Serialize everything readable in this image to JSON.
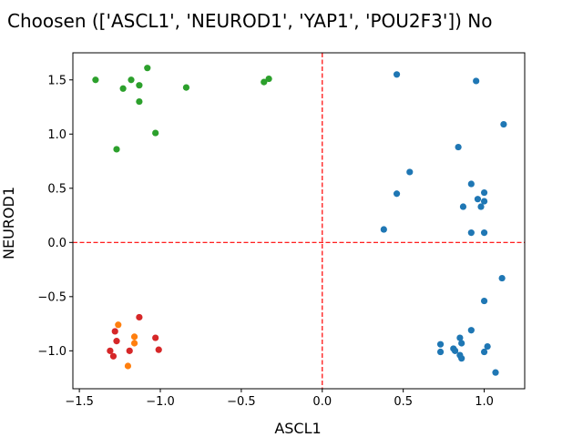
{
  "chart_data": {
    "type": "scatter",
    "title": "Choosen (['ASCL1', 'NEUROD1', 'YAP1', 'POU2F3']) No",
    "xlabel": "ASCL1",
    "ylabel": "NEUROD1",
    "xlim": [
      -1.54,
      1.25
    ],
    "ylim": [
      -1.35,
      1.75
    ],
    "xticks": [
      -1.5,
      -1.0,
      -0.5,
      0.0,
      0.5,
      1.0
    ],
    "xtick_labels": [
      "−1.5",
      "−1.0",
      "−0.5",
      "0.0",
      "0.5",
      "1.0"
    ],
    "yticks": [
      -1.0,
      -0.5,
      0.0,
      0.5,
      1.0,
      1.5
    ],
    "ytick_labels": [
      "−1.0",
      "−0.5",
      "0.0",
      "0.5",
      "1.0",
      "1.5"
    ],
    "grid": false,
    "reference_lines": {
      "x": 0.0,
      "y": 0.0,
      "color": "#ff0000",
      "style": "dashed"
    },
    "series": [
      {
        "color": "#1f77b4",
        "points": [
          [
            0.46,
            1.55
          ],
          [
            0.95,
            1.49
          ],
          [
            1.12,
            1.09
          ],
          [
            0.84,
            0.88
          ],
          [
            0.54,
            0.65
          ],
          [
            0.92,
            0.54
          ],
          [
            0.46,
            0.45
          ],
          [
            1.0,
            0.46
          ],
          [
            0.96,
            0.4
          ],
          [
            1.0,
            0.38
          ],
          [
            0.87,
            0.33
          ],
          [
            0.98,
            0.33
          ],
          [
            0.38,
            0.12
          ],
          [
            0.92,
            0.09
          ],
          [
            1.0,
            0.09
          ],
          [
            1.11,
            -0.33
          ],
          [
            1.0,
            -0.54
          ],
          [
            0.92,
            -0.81
          ],
          [
            0.85,
            -0.88
          ],
          [
            0.73,
            -0.94
          ],
          [
            0.86,
            -0.93
          ],
          [
            0.81,
            -0.98
          ],
          [
            1.02,
            -0.96
          ],
          [
            0.73,
            -1.01
          ],
          [
            0.82,
            -1.0
          ],
          [
            1.0,
            -1.01
          ],
          [
            0.85,
            -1.04
          ],
          [
            0.86,
            -1.07
          ],
          [
            1.07,
            -1.2
          ]
        ]
      },
      {
        "color": "#2ca02c",
        "points": [
          [
            -1.4,
            1.5
          ],
          [
            -1.08,
            1.61
          ],
          [
            -1.18,
            1.5
          ],
          [
            -1.23,
            1.42
          ],
          [
            -1.13,
            1.45
          ],
          [
            -0.84,
            1.43
          ],
          [
            -0.36,
            1.48
          ],
          [
            -0.33,
            1.51
          ],
          [
            -1.13,
            1.3
          ],
          [
            -1.03,
            1.01
          ],
          [
            -1.27,
            0.86
          ]
        ]
      },
      {
        "color": "#ff7f0e",
        "points": [
          [
            -1.26,
            -0.76
          ],
          [
            -1.16,
            -0.87
          ],
          [
            -1.16,
            -0.93
          ],
          [
            -1.2,
            -1.14
          ]
        ]
      },
      {
        "color": "#d62728",
        "points": [
          [
            -1.13,
            -0.69
          ],
          [
            -1.28,
            -0.82
          ],
          [
            -1.03,
            -0.88
          ],
          [
            -1.27,
            -0.91
          ],
          [
            -1.31,
            -1.0
          ],
          [
            -1.01,
            -0.99
          ],
          [
            -1.19,
            -1.0
          ],
          [
            -1.29,
            -1.05
          ]
        ]
      }
    ]
  }
}
